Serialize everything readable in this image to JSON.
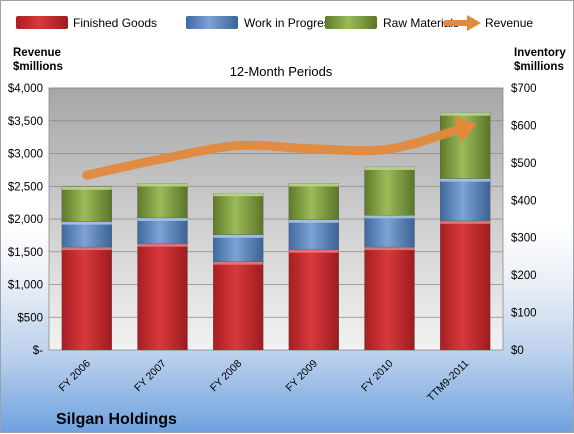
{
  "chart_data": {
    "type": "bar",
    "stacked": true,
    "title": "12-Month Periods",
    "company": "Silgan Holdings",
    "categories": [
      "FY 2006",
      "FY 2007",
      "FY 2008",
      "FY 2009",
      "FY 2010",
      "TTM9-2011"
    ],
    "series": [
      {
        "name": "Finished Goods",
        "axis": "right",
        "color": "#c0282d",
        "values": [
          275,
          284,
          236,
          268,
          275,
          345
        ]
      },
      {
        "name": "Work in Progress",
        "axis": "right",
        "color": "#4f81bd",
        "values": [
          68,
          69,
          72,
          80,
          85,
          113
        ]
      },
      {
        "name": "Raw Materials",
        "axis": "right",
        "color": "#77933c",
        "values": [
          93,
          92,
          111,
          97,
          129,
          176
        ]
      },
      {
        "name": "Revenue",
        "axis": "left",
        "type": "line",
        "color": "#e3893c",
        "values": [
          2670,
          2920,
          3120,
          3070,
          3070,
          3400
        ]
      }
    ],
    "y_left": {
      "label_line1": "Revenue",
      "label_line2": "$millions",
      "range": [
        0,
        4000
      ],
      "tick_labels": [
        "$-",
        "$500",
        "$1,000",
        "$1,500",
        "$2,000",
        "$2,500",
        "$3,000",
        "$3,500",
        "$4,000"
      ]
    },
    "y_right": {
      "label_line1": "Inventory",
      "label_line2": "$millions",
      "range": [
        0,
        700
      ],
      "tick_labels": [
        "$0",
        "$100",
        "$200",
        "$300",
        "$400",
        "$500",
        "$600",
        "$700"
      ]
    },
    "legend_position": "top",
    "grid": true
  }
}
